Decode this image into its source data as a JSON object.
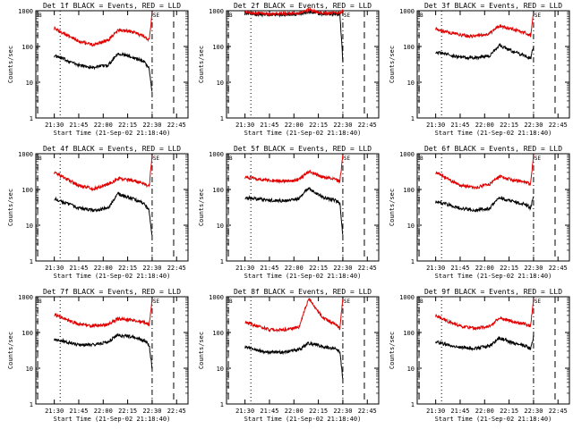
{
  "x_ticks": [
    "21:30",
    "21:45",
    "22:00",
    "22:15",
    "22:30",
    "22:45"
  ],
  "xlabel": "Start Time (21-Sep-02 21:18:40)",
  "ylabel": "Counts/sec",
  "y_ticks": [
    "1",
    "10",
    "100",
    "1000"
  ],
  "marker_left": "B",
  "marker_right": "SE",
  "colors": {
    "events": "#000000",
    "lld": "#e00000"
  },
  "chart_data": [
    {
      "type": "line",
      "title": "Det 1f BLACK = Events, RED = LLD",
      "x_ticks": [
        "21:30",
        "21:45",
        "22:00",
        "22:15",
        "22:30",
        "22:45"
      ],
      "xlabel": "Start Time (21-Sep-02 21:18:40)",
      "ylabel": "Counts/sec",
      "ylim": [
        1,
        1000
      ],
      "yscale": "log",
      "series": [
        {
          "name": "Events",
          "color": "#000000",
          "x": [
            21.5,
            21.62,
            21.75,
            21.9,
            22.05,
            22.15,
            22.3,
            22.42,
            22.47,
            22.5
          ],
          "y": [
            55,
            42,
            30,
            26,
            30,
            65,
            50,
            38,
            24,
            5
          ]
        },
        {
          "name": "LLD",
          "color": "#e00000",
          "x": [
            21.5,
            21.62,
            21.75,
            21.9,
            22.05,
            22.15,
            22.3,
            22.42,
            22.47,
            22.5
          ],
          "y": [
            320,
            210,
            140,
            110,
            150,
            280,
            260,
            190,
            150,
            900
          ]
        }
      ]
    },
    {
      "type": "line",
      "title": "Det 2f BLACK = Events, RED = LLD",
      "x_ticks": [
        "21:30",
        "21:45",
        "22:00",
        "22:15",
        "22:30",
        "22:45"
      ],
      "xlabel": "Start Time (21-Sep-02 21:18:40)",
      "ylabel": "Counts/sec",
      "ylim": [
        1,
        1000
      ],
      "yscale": "log",
      "series": [
        {
          "name": "Events",
          "color": "#000000",
          "x": [
            21.5,
            21.62,
            21.75,
            21.9,
            22.05,
            22.15,
            22.3,
            22.42,
            22.47,
            22.5
          ],
          "y": [
            850,
            800,
            780,
            780,
            800,
            950,
            820,
            800,
            780,
            40
          ]
        },
        {
          "name": "LLD",
          "color": "#e00000",
          "x": [
            21.5,
            21.62,
            21.75,
            21.9,
            22.05,
            22.15,
            22.3,
            22.42,
            22.47,
            22.5
          ],
          "y": [
            900,
            850,
            820,
            830,
            850,
            1050,
            870,
            850,
            830,
            1000
          ]
        }
      ]
    },
    {
      "type": "line",
      "title": "Det 3f BLACK = Events, RED = LLD",
      "x_ticks": [
        "21:30",
        "21:45",
        "22:00",
        "22:15",
        "22:30",
        "22:45"
      ],
      "xlabel": "Start Time (21-Sep-02 21:18:40)",
      "ylabel": "Counts/sec",
      "ylim": [
        1,
        1000
      ],
      "yscale": "log",
      "series": [
        {
          "name": "Events",
          "color": "#000000",
          "x": [
            21.5,
            21.62,
            21.75,
            21.9,
            22.05,
            22.15,
            22.3,
            22.42,
            22.47,
            22.5
          ],
          "y": [
            70,
            60,
            50,
            48,
            55,
            110,
            70,
            55,
            45,
            100
          ]
        },
        {
          "name": "LLD",
          "color": "#e00000",
          "x": [
            21.5,
            21.62,
            21.75,
            21.9,
            22.05,
            22.15,
            22.3,
            22.42,
            22.47,
            22.5
          ],
          "y": [
            320,
            250,
            210,
            190,
            230,
            380,
            300,
            240,
            200,
            900
          ]
        }
      ]
    },
    {
      "type": "line",
      "title": "Det 4f BLACK = Events, RED = LLD",
      "x_ticks": [
        "21:30",
        "21:45",
        "22:00",
        "22:15",
        "22:30",
        "22:45"
      ],
      "xlabel": "Start Time (21-Sep-02 21:18:40)",
      "ylabel": "Counts/sec",
      "ylim": [
        1,
        1000
      ],
      "yscale": "log",
      "series": [
        {
          "name": "Events",
          "color": "#000000",
          "x": [
            21.5,
            21.62,
            21.75,
            21.9,
            22.05,
            22.15,
            22.3,
            22.42,
            22.47,
            22.5
          ],
          "y": [
            55,
            42,
            30,
            26,
            30,
            75,
            55,
            40,
            25,
            5
          ]
        },
        {
          "name": "LLD",
          "color": "#e00000",
          "x": [
            21.5,
            21.62,
            21.75,
            21.9,
            22.05,
            22.15,
            22.3,
            22.42,
            22.47,
            22.5
          ],
          "y": [
            300,
            200,
            130,
            105,
            140,
            200,
            180,
            150,
            120,
            900
          ]
        }
      ]
    },
    {
      "type": "line",
      "title": "Det 5f BLACK = Events, RED = LLD",
      "x_ticks": [
        "21:30",
        "21:45",
        "22:00",
        "22:15",
        "22:30",
        "22:45"
      ],
      "xlabel": "Start Time (21-Sep-02 21:18:40)",
      "ylabel": "Counts/sec",
      "ylim": [
        1,
        1000
      ],
      "yscale": "log",
      "series": [
        {
          "name": "Events",
          "color": "#000000",
          "x": [
            21.5,
            21.62,
            21.75,
            21.9,
            22.05,
            22.15,
            22.3,
            22.42,
            22.47,
            22.5
          ],
          "y": [
            60,
            55,
            50,
            48,
            55,
            110,
            60,
            50,
            40,
            5
          ]
        },
        {
          "name": "LLD",
          "color": "#e00000",
          "x": [
            21.5,
            21.62,
            21.75,
            21.9,
            22.05,
            22.15,
            22.3,
            22.42,
            22.47,
            22.5
          ],
          "y": [
            220,
            200,
            180,
            170,
            190,
            320,
            220,
            190,
            170,
            900
          ]
        }
      ]
    },
    {
      "type": "line",
      "title": "Det 6f BLACK = Events, RED = LLD",
      "x_ticks": [
        "21:30",
        "21:45",
        "22:00",
        "22:15",
        "22:30",
        "22:45"
      ],
      "xlabel": "Start Time (21-Sep-02 21:18:40)",
      "ylabel": "Counts/sec",
      "ylim": [
        1,
        1000
      ],
      "yscale": "log",
      "series": [
        {
          "name": "Events",
          "color": "#000000",
          "x": [
            21.5,
            21.62,
            21.75,
            21.9,
            22.05,
            22.15,
            22.3,
            22.42,
            22.47,
            22.5
          ],
          "y": [
            45,
            38,
            30,
            26,
            30,
            60,
            45,
            38,
            30,
            70
          ]
        },
        {
          "name": "LLD",
          "color": "#e00000",
          "x": [
            21.5,
            21.62,
            21.75,
            21.9,
            22.05,
            22.15,
            22.3,
            22.42,
            22.47,
            22.5
          ],
          "y": [
            300,
            200,
            130,
            110,
            140,
            230,
            180,
            160,
            140,
            900
          ]
        }
      ]
    },
    {
      "type": "line",
      "title": "Det 7f BLACK = Events, RED = LLD",
      "x_ticks": [
        "21:30",
        "21:45",
        "22:00",
        "22:15",
        "22:30",
        "22:45"
      ],
      "xlabel": "Start Time (21-Sep-02 21:18:40)",
      "ylabel": "Counts/sec",
      "ylim": [
        1,
        1000
      ],
      "yscale": "log",
      "series": [
        {
          "name": "Events",
          "color": "#000000",
          "x": [
            21.5,
            21.62,
            21.75,
            21.9,
            22.05,
            22.15,
            22.3,
            22.42,
            22.47,
            22.5
          ],
          "y": [
            65,
            55,
            45,
            45,
            55,
            85,
            75,
            60,
            45,
            10
          ]
        },
        {
          "name": "LLD",
          "color": "#e00000",
          "x": [
            21.5,
            21.62,
            21.75,
            21.9,
            22.05,
            22.15,
            22.3,
            22.42,
            22.47,
            22.5
          ],
          "y": [
            320,
            230,
            170,
            150,
            170,
            240,
            220,
            190,
            160,
            900
          ]
        }
      ]
    },
    {
      "type": "line",
      "title": "Det 8f BLACK = Events, RED = LLD",
      "x_ticks": [
        "21:30",
        "21:45",
        "22:00",
        "22:15",
        "22:30",
        "22:45"
      ],
      "xlabel": "Start Time (21-Sep-02 21:18:40)",
      "ylabel": "Counts/sec",
      "ylim": [
        1,
        1000
      ],
      "yscale": "log",
      "series": [
        {
          "name": "Events",
          "color": "#000000",
          "x": [
            21.5,
            21.62,
            21.75,
            21.9,
            22.05,
            22.15,
            22.3,
            22.42,
            22.47,
            22.5
          ],
          "y": [
            40,
            32,
            28,
            28,
            33,
            50,
            40,
            35,
            28,
            5
          ]
        },
        {
          "name": "LLD",
          "color": "#e00000",
          "x": [
            21.5,
            21.62,
            21.75,
            21.9,
            22.05,
            22.15,
            22.3,
            22.42,
            22.47,
            22.5
          ],
          "y": [
            200,
            150,
            120,
            120,
            140,
            900,
            250,
            170,
            130,
            900
          ]
        }
      ]
    },
    {
      "type": "line",
      "title": "Det 9f BLACK = Events, RED = LLD",
      "x_ticks": [
        "21:30",
        "21:45",
        "22:00",
        "22:15",
        "22:30",
        "22:45"
      ],
      "xlabel": "Start Time (21-Sep-02 21:18:40)",
      "ylabel": "Counts/sec",
      "ylim": [
        1,
        1000
      ],
      "yscale": "log",
      "series": [
        {
          "name": "Events",
          "color": "#000000",
          "x": [
            21.5,
            21.62,
            21.75,
            21.9,
            22.05,
            22.15,
            22.3,
            22.42,
            22.47,
            22.5
          ],
          "y": [
            55,
            45,
            38,
            36,
            42,
            70,
            50,
            42,
            35,
            80
          ]
        },
        {
          "name": "LLD",
          "color": "#e00000",
          "x": [
            21.5,
            21.62,
            21.75,
            21.9,
            22.05,
            22.15,
            22.3,
            22.42,
            22.47,
            22.5
          ],
          "y": [
            300,
            210,
            150,
            130,
            150,
            250,
            200,
            170,
            150,
            900
          ]
        }
      ]
    }
  ]
}
